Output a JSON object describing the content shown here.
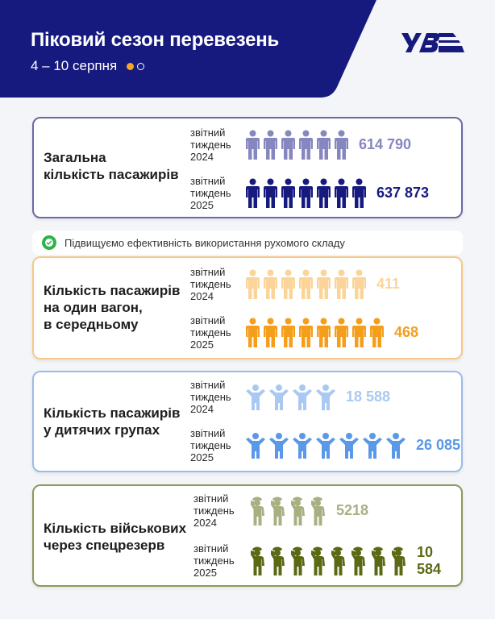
{
  "header": {
    "title": "Піковий сезон перевезень",
    "subtitle": "4 – 10 серпня",
    "page_indicator": {
      "current": 1,
      "total": 2
    },
    "logo": "УЗ",
    "bg_color": "#161a7e"
  },
  "note": {
    "icon": "check-circle-icon",
    "text": "Підвищуємо ефективність використання рухомого складу",
    "color": "#2db34a"
  },
  "period_labels": {
    "line1": "звітний",
    "line2": "тиждень",
    "y2024": "2024",
    "y2025": "2025"
  },
  "cards": [
    {
      "id": "total",
      "label_lines": [
        "Загальна",
        "кількість пасажирів"
      ],
      "icon": "person-icon",
      "border_color": "#6a6aa8",
      "rows": [
        {
          "year": "2024",
          "icons": 6,
          "value": "614 790",
          "color": "#8787bf"
        },
        {
          "year": "2025",
          "icons": 7,
          "value": "637 873",
          "color": "#161a7e"
        }
      ]
    },
    {
      "id": "per_car",
      "label_lines": [
        "Кількість пасажирів",
        "на один вагон,",
        "в середньому"
      ],
      "icon": "person-icon",
      "border_color": "#f7c98a",
      "rows": [
        {
          "year": "2024",
          "icons": 7,
          "value": "411",
          "color": "#fbd49a"
        },
        {
          "year": "2025",
          "icons": 8,
          "value": "468",
          "color": "#f59e1b"
        }
      ]
    },
    {
      "id": "children",
      "label_lines": [
        "Кількість пасажирів",
        "у дитячих групах"
      ],
      "icon": "child-arms-up-icon",
      "border_color": "#9bbbe8",
      "rows": [
        {
          "year": "2024",
          "icons": 4,
          "value": "18 588",
          "color": "#a9c9f2"
        },
        {
          "year": "2025",
          "icons": 7,
          "value": "26 085",
          "color": "#5a98e8"
        }
      ]
    },
    {
      "id": "military",
      "label_lines": [
        "Кількість військових",
        "через спецрезерв"
      ],
      "icon": "soldier-salute-icon",
      "border_color": "#8a9a5a",
      "rows": [
        {
          "year": "2024",
          "icons": 4,
          "value": "5218",
          "color": "#a8b083"
        },
        {
          "year": "2025",
          "icons": 8,
          "value": "10 584",
          "color": "#5a6914"
        }
      ]
    }
  ],
  "chart_data": {
    "type": "bar",
    "title": "Піковий сезон перевезень, 4 – 10 серпня",
    "categories": [
      "Загальна кількість пасажирів",
      "Кількість пасажирів на один вагон, в середньому",
      "Кількість пасажирів у дитячих групах",
      "Кількість військових через спецрезерв"
    ],
    "series": [
      {
        "name": "звітний тиждень 2024",
        "values": [
          614790,
          411,
          18588,
          5218
        ]
      },
      {
        "name": "звітний тиждень 2025",
        "values": [
          637873,
          468,
          26085,
          10584
        ]
      }
    ],
    "xlabel": "",
    "ylabel": "",
    "legend_position": "inline",
    "grid": false
  }
}
